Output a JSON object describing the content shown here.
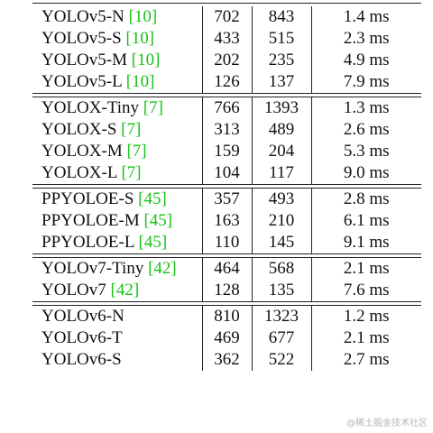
{
  "groups": [
    {
      "rows": [
        {
          "model": "YOLOv5-N ",
          "cite": "[10]",
          "v1": "702",
          "v2": "843",
          "latency": "1.4 ms"
        },
        {
          "model": "YOLOv5-S ",
          "cite": "[10]",
          "v1": "433",
          "v2": "515",
          "latency": "2.3 ms"
        },
        {
          "model": "YOLOv5-M ",
          "cite": "[10]",
          "v1": "202",
          "v2": "235",
          "latency": "4.9 ms"
        },
        {
          "model": "YOLOv5-L ",
          "cite": "[10]",
          "v1": "126",
          "v2": "137",
          "latency": "7.9 ms"
        }
      ]
    },
    {
      "rows": [
        {
          "model": "YOLOX-Tiny ",
          "cite": "[7]",
          "v1": "766",
          "v2": "1393",
          "latency": "1.3 ms"
        },
        {
          "model": "YOLOX-S ",
          "cite": "[7]",
          "v1": "313",
          "v2": "489",
          "latency": "2.6 ms"
        },
        {
          "model": "YOLOX-M ",
          "cite": "[7]",
          "v1": "159",
          "v2": "204",
          "latency": "5.3 ms"
        },
        {
          "model": "YOLOX-L ",
          "cite": "[7]",
          "v1": "104",
          "v2": "117",
          "latency": "9.0 ms"
        }
      ]
    },
    {
      "rows": [
        {
          "model": "PPYOLOE-S ",
          "cite": "[45]",
          "v1": "357",
          "v2": "493",
          "latency": "2.8 ms"
        },
        {
          "model": "PPYOLOE-M ",
          "cite": "[45]",
          "v1": "163",
          "v2": "210",
          "latency": "6.1 ms"
        },
        {
          "model": "PPYOLOE-L ",
          "cite": "[45]",
          "v1": "110",
          "v2": "145",
          "latency": "9.1 ms"
        }
      ]
    },
    {
      "rows": [
        {
          "model": "YOLOv7-Tiny ",
          "cite": "[42]",
          "v1": "464",
          "v2": "568",
          "latency": "2.1 ms"
        },
        {
          "model": "YOLOv7 ",
          "cite": "[42]",
          "v1": "128",
          "v2": "135",
          "latency": "7.6 ms"
        }
      ]
    },
    {
      "rows": [
        {
          "model": "YOLOv6-N",
          "cite": "",
          "v1": "810",
          "v2": "1323",
          "latency": "1.2 ms"
        },
        {
          "model": "YOLOv6-T",
          "cite": "",
          "v1": "469",
          "v2": "677",
          "latency": "2.1 ms"
        },
        {
          "model": "YOLOv6-S",
          "cite": "",
          "v1": "362",
          "v2": "522",
          "latency": "2.7 ms"
        }
      ]
    }
  ],
  "watermark": "@稀土掘金技术社区",
  "colors": {
    "citation": "#19c219",
    "text": "#111111",
    "rule": "#222222"
  }
}
